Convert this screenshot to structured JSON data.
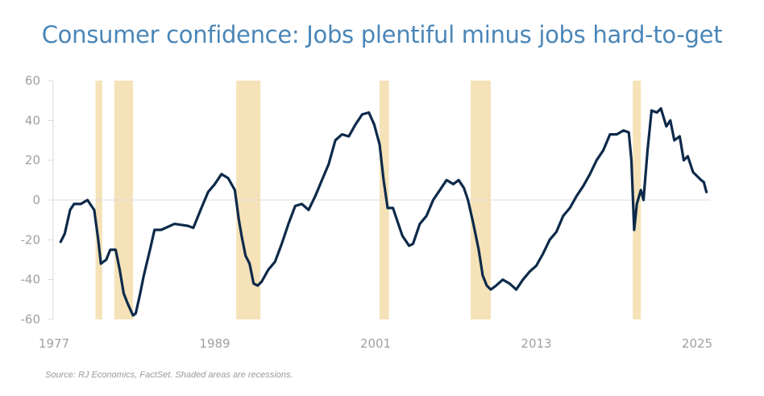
{
  "chart_data": {
    "type": "line",
    "title": "Consumer confidence: Jobs plentiful minus jobs hard-to-get",
    "xlabel": "",
    "ylabel": "",
    "xlim": [
      1977,
      2026
    ],
    "ylim": [
      -60,
      60
    ],
    "x_ticks": [
      "1977",
      "1989",
      "2001",
      "2013",
      "2025"
    ],
    "y_ticks": [
      "60",
      "40",
      "20",
      "0",
      "-20",
      "-40",
      "-60"
    ],
    "grid": false,
    "zero_line": true,
    "legend": "none",
    "colors": {
      "line": "#0d2a4a",
      "recession": "#f5e2b8",
      "title": "#4a86b8",
      "axis_text": "#a0a0a0"
    },
    "recessions": [
      [
        1980.1,
        1980.6
      ],
      [
        1981.5,
        1982.9
      ],
      [
        1990.6,
        1992.4
      ],
      [
        2001.3,
        2002.0
      ],
      [
        2008.1,
        2009.6
      ],
      [
        2020.2,
        2020.8
      ]
    ],
    "series": [
      {
        "x": [
          1977.5,
          1977.8,
          1978.2,
          1978.5,
          1979.0,
          1979.5,
          1979.8,
          1980.0,
          1980.3,
          1980.5,
          1980.9,
          1981.2,
          1981.6,
          1981.9,
          1982.2,
          1982.5,
          1982.9,
          1983.1,
          1983.4,
          1983.7,
          1984.2,
          1984.5,
          1985.0,
          1986.0,
          1987.0,
          1987.4,
          1988.0,
          1988.5,
          1989.0,
          1989.5,
          1990.0,
          1990.5,
          1990.8,
          1991.0,
          1991.3,
          1991.6,
          1991.9,
          1992.2,
          1992.5,
          1993.0,
          1993.5,
          1994.0,
          1994.5,
          1995.0,
          1995.5,
          1996.0,
          1996.5,
          1997.0,
          1997.5,
          1998.0,
          1998.5,
          1999.0,
          1999.5,
          2000.0,
          2000.5,
          2000.9,
          2001.3,
          2001.6,
          2001.9,
          2002.3,
          2002.6,
          2003.0,
          2003.5,
          2003.8,
          2004.3,
          2004.8,
          2005.3,
          2005.8,
          2006.3,
          2006.8,
          2007.2,
          2007.6,
          2007.9,
          2008.3,
          2008.7,
          2009.0,
          2009.3,
          2009.6,
          2010.0,
          2010.5,
          2011.0,
          2011.5,
          2012.0,
          2012.5,
          2013.0,
          2013.5,
          2014.0,
          2014.5,
          2015.0,
          2015.5,
          2016.0,
          2016.5,
          2017.0,
          2017.5,
          2018.0,
          2018.5,
          2019.0,
          2019.5,
          2019.9,
          2020.1,
          2020.3,
          2020.5,
          2020.8,
          2021.0,
          2021.3,
          2021.6,
          2022.0,
          2022.3,
          2022.7,
          2023.0,
          2023.3,
          2023.7,
          2024.0,
          2024.3,
          2024.7,
          2025.0,
          2025.3,
          2025.5,
          2025.7
        ],
        "y": [
          -21,
          -17,
          -5,
          -2,
          -2,
          0,
          -3,
          -5,
          -20,
          -32,
          -30,
          -25,
          -25,
          -35,
          -47,
          -52,
          -58,
          -57,
          -48,
          -38,
          -24,
          -15,
          -15,
          -12,
          -13,
          -14,
          -4,
          4,
          8,
          13,
          11,
          5,
          -10,
          -18,
          -28,
          -32,
          -42,
          -43,
          -41,
          -35,
          -31,
          -22,
          -12,
          -3,
          -2,
          -5,
          2,
          10,
          18,
          30,
          33,
          32,
          38,
          43,
          44,
          38,
          28,
          10,
          -4,
          -4,
          -10,
          -18,
          -23,
          -22,
          -12,
          -8,
          0,
          5,
          10,
          8,
          10,
          6,
          0,
          -12,
          -25,
          -38,
          -43,
          -45,
          -43,
          -40,
          -42,
          -45,
          -40,
          -36,
          -33,
          -27,
          -20,
          -16,
          -8,
          -4,
          2,
          7,
          13,
          20,
          25,
          33,
          33,
          35,
          34,
          20,
          -15,
          -2,
          5,
          0,
          25,
          45,
          44,
          46,
          37,
          40,
          30,
          32,
          20,
          22,
          14,
          12,
          10,
          9,
          4
        ]
      }
    ],
    "source": "Source: RJ Economics, FactSet. Shaded areas are recessions."
  }
}
